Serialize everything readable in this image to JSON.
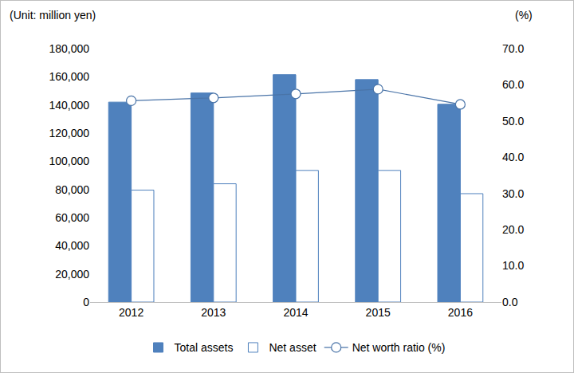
{
  "chart_data": {
    "type": "bar",
    "y_label": "(Unit: million yen)",
    "y2_label": "(%)",
    "categories": [
      "2012",
      "2013",
      "2014",
      "2015",
      "2016"
    ],
    "series": [
      {
        "name": "Total assets",
        "type": "bar",
        "color": "#4f81bd",
        "values": [
          142000,
          148500,
          161500,
          158000,
          140500
        ]
      },
      {
        "name": "Net asset",
        "type": "bar",
        "color": "#ffffff",
        "values": [
          79500,
          84000,
          93500,
          93500,
          77000
        ]
      },
      {
        "name": "Net worth ratio (%)",
        "type": "line",
        "marker": "circle",
        "color": "#4a74a8",
        "axis": "y2",
        "values": [
          55.6,
          56.4,
          57.5,
          58.8,
          54.6
        ]
      }
    ],
    "ylim": [
      0,
      180000
    ],
    "yticks": [
      0,
      {
        "value": 20000,
        "label": "20,000"
      },
      {
        "value": 40000,
        "label": "40,000"
      },
      {
        "value": 60000,
        "label": "60,000"
      },
      {
        "value": 80000,
        "label": "80,000"
      },
      {
        "value": 100000,
        "label": "100,000"
      },
      {
        "value": 120000,
        "label": "120,000"
      },
      {
        "value": 140000,
        "label": "140,000"
      },
      {
        "value": 160000,
        "label": "160,000"
      },
      {
        "value": 180000,
        "label": "180,000"
      }
    ],
    "y2lim": [
      0,
      70
    ],
    "y2ticks": [
      {
        "value": 0,
        "label": "0.0"
      },
      {
        "value": 10,
        "label": "10.0"
      },
      {
        "value": 20,
        "label": "20.0"
      },
      {
        "value": 30,
        "label": "30.0"
      },
      {
        "value": 40,
        "label": "40.0"
      },
      {
        "value": 50,
        "label": "50.0"
      },
      {
        "value": 60,
        "label": "60.0"
      },
      {
        "value": 70,
        "label": "70.0"
      }
    ],
    "grid": false,
    "legend": "bottom"
  }
}
